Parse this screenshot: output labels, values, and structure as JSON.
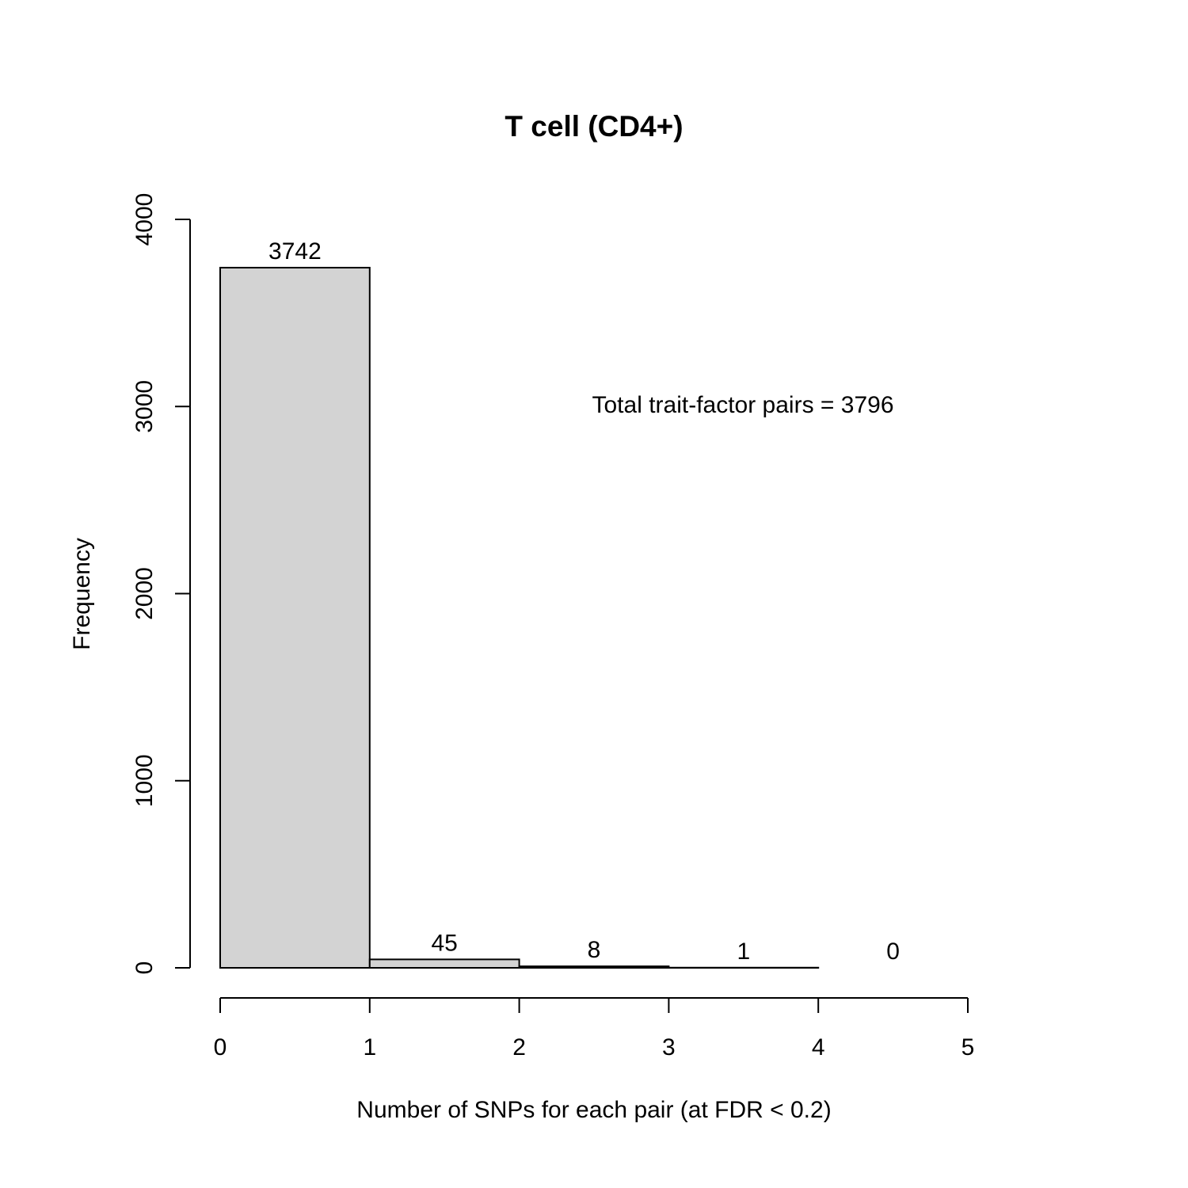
{
  "chart_data": {
    "type": "bar",
    "title": "T cell (CD4+)",
    "xlabel": "Number of SNPs for each pair (at FDR < 0.2)",
    "ylabel": "Frequency",
    "bins": [
      {
        "x0": 0,
        "x1": 1,
        "value": 3742,
        "label": "3742"
      },
      {
        "x0": 1,
        "x1": 2,
        "value": 45,
        "label": "45"
      },
      {
        "x0": 2,
        "x1": 3,
        "value": 8,
        "label": "8"
      },
      {
        "x0": 3,
        "x1": 4,
        "value": 1,
        "label": "1"
      },
      {
        "x0": 4,
        "x1": 5,
        "value": 0,
        "label": "0"
      }
    ],
    "xlim": [
      0,
      5
    ],
    "ylim": [
      0,
      4000
    ],
    "x_ticks": [
      "0",
      "1",
      "2",
      "3",
      "4",
      "5"
    ],
    "y_ticks": [
      "0",
      "1000",
      "2000",
      "3000",
      "4000"
    ],
    "annotation": "Total trait-factor pairs = 3796",
    "grid": false,
    "colors": {
      "bar_fill": "#d3d3d3",
      "bar_stroke": "#000000"
    }
  }
}
